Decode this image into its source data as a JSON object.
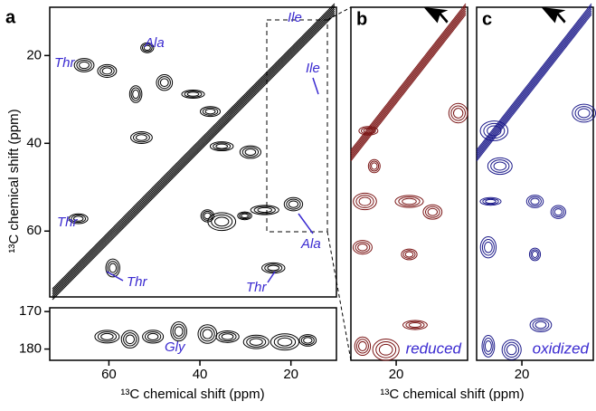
{
  "chart_data": [
    {
      "type": "contour",
      "panel": "a",
      "ylabel": "¹³C chemical shift (ppm)",
      "xlim": [
        73,
        10
      ],
      "ylim": [
        9,
        75
      ],
      "yticks": [
        20,
        40,
        60
      ],
      "color": "#000000",
      "annotations": [
        "Ile",
        "Ala",
        "Thr",
        "Ile",
        "Thr",
        "Ala",
        "Thr",
        "Thr"
      ]
    },
    {
      "type": "contour",
      "xlabel": "¹³C chemical shift (ppm)",
      "xlim": [
        73,
        10
      ],
      "ylim": [
        169,
        183
      ],
      "xticks": [
        60,
        40,
        20
      ],
      "yticks": [
        170,
        180
      ],
      "color": "#000000",
      "annotations": [
        "Gly"
      ]
    },
    {
      "type": "contour",
      "panel": "b",
      "xlabel": "¹³C chemical shift (ppm)",
      "xlim": [
        25.2,
        11.8
      ],
      "ylim": [
        11.8,
        60
      ],
      "xticks": [
        20
      ],
      "color": "#7a1414",
      "annotations": [
        "reduced"
      ]
    },
    {
      "type": "contour",
      "panel": "c",
      "xlim": [
        25.2,
        11.8
      ],
      "ylim": [
        11.8,
        60
      ],
      "xticks": [
        20
      ],
      "color": "#1c1a8a",
      "annotations": [
        "oxidized"
      ]
    }
  ]
}
